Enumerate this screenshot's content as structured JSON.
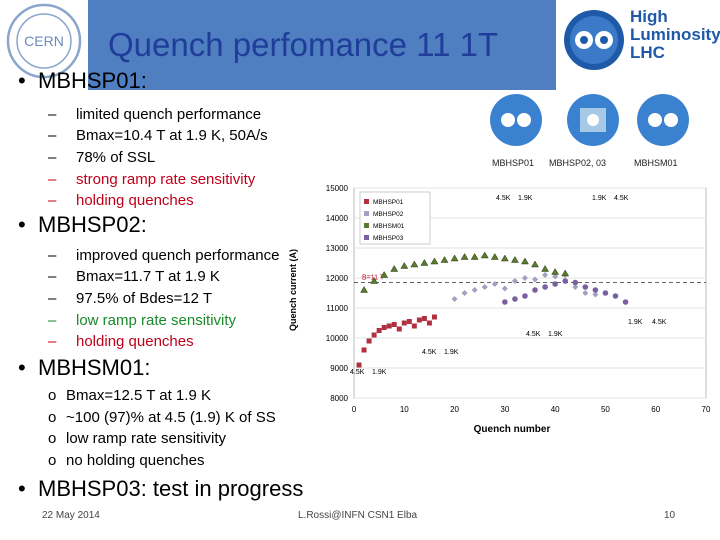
{
  "header": {
    "title": "Quench perfomance 11 1T",
    "hl_logo_lines": [
      "High",
      "Luminosity",
      "LHC"
    ],
    "cern_logo_text": "CERN"
  },
  "bullets": [
    {
      "label": "MBHSP01:",
      "items": [
        {
          "marker": "–",
          "text": "limited quench performance",
          "color": "#000000"
        },
        {
          "marker": "–",
          "text": "Bmax=10.4 T at 1.9 K, 50A/s",
          "color": "#000000"
        },
        {
          "marker": "–",
          "text": "78% of SSL",
          "color": "#000000"
        },
        {
          "marker": "–",
          "text": "strong ramp rate sensitivity",
          "color": "#c0001a"
        },
        {
          "marker": "–",
          "text": "holding quenches",
          "color": "#c0001a"
        }
      ]
    },
    {
      "label": "MBHSP02:",
      "items": [
        {
          "marker": "–",
          "text": "improved quench performance",
          "color": "#000000"
        },
        {
          "marker": "–",
          "text": "Bmax=11.7 T at 1.9 K",
          "color": "#000000"
        },
        {
          "marker": "–",
          "text": "97.5% of Bdes=12 T",
          "color": "#000000"
        },
        {
          "marker": "–",
          "text": "low ramp rate sensitivity",
          "color": "#1a8a2a"
        },
        {
          "marker": "–",
          "text": "holding quenches",
          "color": "#c0001a"
        }
      ]
    },
    {
      "label": "MBHSM01:",
      "items": [
        {
          "marker": "o",
          "text": "Bmax=12.5 T at 1.9 K",
          "color": "#000000"
        },
        {
          "marker": "o",
          "text": "~100 (97)% at 4.5 (1.9) K of SS",
          "color": "#000000"
        },
        {
          "marker": "o",
          "text": "low ramp rate sensitivity",
          "color": "#000000"
        },
        {
          "marker": "o",
          "text": "no holding quenches",
          "color": "#000000"
        }
      ]
    },
    {
      "label": "MBHSP03: test in progress",
      "items": []
    }
  ],
  "thumbnails": [
    "MBHSP01",
    "MBHSP02, 03",
    "MBHSM01"
  ],
  "footer": {
    "date": "22 May 2014",
    "author": "L.Rossi@INFN CSN1 Elba",
    "page": "10"
  },
  "chart_data": {
    "type": "scatter",
    "xlabel": "Quench number",
    "ylabel": "Quench current (A)",
    "xlim": [
      0,
      70
    ],
    "ylim": [
      8000,
      15000
    ],
    "xticks": [
      0,
      10,
      20,
      30,
      40,
      50,
      60,
      70
    ],
    "yticks": [
      8000,
      9000,
      10000,
      11000,
      12000,
      13000,
      14000,
      15000
    ],
    "reference_line": {
      "label": "B=11 T",
      "y": 11850
    },
    "annotations": [
      "4.5K",
      "1.9K",
      "1.9K",
      "4.5K",
      "4.5K",
      "1.9K",
      "4.5K",
      "1.9K",
      "4.5K",
      "1.9K",
      "1.9K",
      "4.5K"
    ],
    "colors": {
      "MBHSP01": "#b03040",
      "MBHSP02": "#a0a0c0",
      "MBHSM01": "#5a7a30",
      "MBHSP03": "#7a60a0"
    },
    "series": [
      {
        "name": "MBHSP01",
        "marker": "square",
        "x": [
          1,
          2,
          3,
          4,
          5,
          6,
          7,
          8,
          9,
          10,
          11,
          12,
          13,
          14,
          15,
          16
        ],
        "y": [
          9100,
          9600,
          9900,
          10100,
          10250,
          10350,
          10400,
          10450,
          10300,
          10500,
          10550,
          10400,
          10600,
          10650,
          10500,
          10700
        ]
      },
      {
        "name": "MBHSP02",
        "marker": "diamond",
        "x": [
          20,
          22,
          24,
          26,
          28,
          30,
          32,
          34,
          36,
          38,
          40,
          42,
          44,
          46,
          48
        ],
        "y": [
          11300,
          11500,
          11600,
          11700,
          11800,
          11650,
          11900,
          12000,
          11950,
          12100,
          12050,
          12100,
          11700,
          11500,
          11450
        ]
      },
      {
        "name": "MBHSM01",
        "marker": "triangle",
        "x": [
          2,
          4,
          6,
          8,
          10,
          12,
          14,
          16,
          18,
          20,
          22,
          24,
          26,
          28,
          30,
          32,
          34,
          36,
          38,
          40,
          42
        ],
        "y": [
          11600,
          11900,
          12100,
          12300,
          12400,
          12450,
          12500,
          12550,
          12600,
          12650,
          12700,
          12700,
          12750,
          12700,
          12650,
          12600,
          12550,
          12450,
          12300,
          12200,
          12150
        ]
      },
      {
        "name": "MBHSP03",
        "marker": "circle",
        "x": [
          30,
          32,
          34,
          36,
          38,
          40,
          42,
          44,
          46,
          48,
          50,
          52,
          54
        ],
        "y": [
          11200,
          11300,
          11400,
          11600,
          11700,
          11800,
          11900,
          11850,
          11700,
          11600,
          11500,
          11400,
          11200
        ]
      }
    ]
  }
}
